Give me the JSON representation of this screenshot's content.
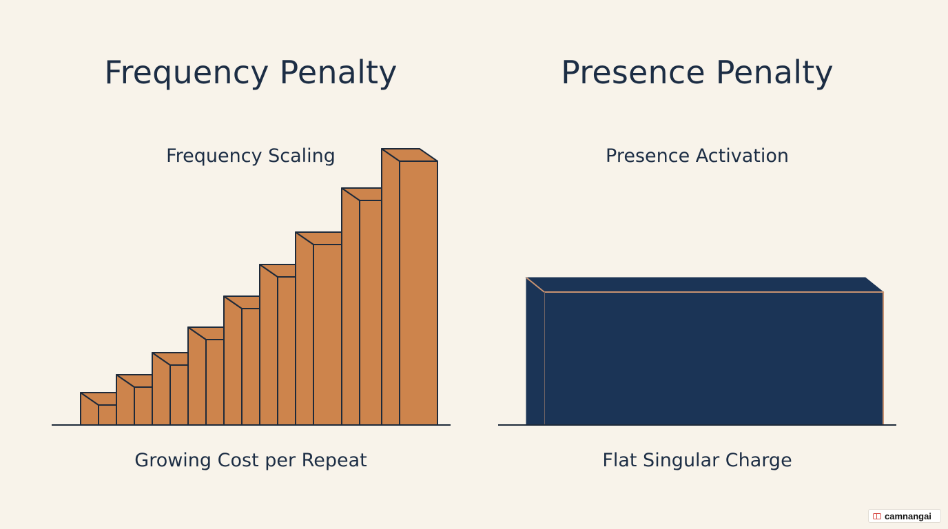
{
  "left_panel": {
    "title": "Frequency Penalty",
    "subtitle": "Frequency Scaling",
    "caption": "Growing Cost per Repeat",
    "step_count": 9,
    "step_levels": [
      1,
      2,
      3,
      4,
      5,
      6,
      7,
      8,
      9
    ],
    "step_color": "#cd844c",
    "outline_color": "#1e2a3a"
  },
  "right_panel": {
    "title": "Presence Penalty",
    "subtitle": "Presence Activation",
    "caption": "Flat Singular Charge",
    "block_color": "#1b3456",
    "edge_color": "#c99371"
  },
  "badge": {
    "label": "camnangai"
  }
}
